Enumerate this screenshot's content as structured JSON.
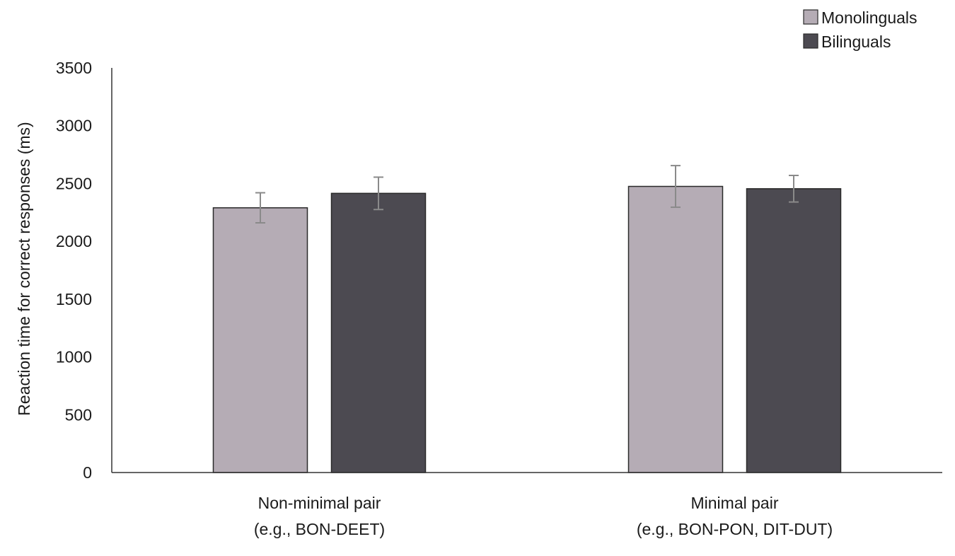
{
  "chart_data": {
    "type": "bar",
    "title": "",
    "xlabel": "",
    "ylabel": "Reaction time for correct responses (ms)",
    "ylim": [
      0,
      3500
    ],
    "yticks": [
      0,
      500,
      1000,
      1500,
      2000,
      2500,
      3000,
      3500
    ],
    "grid": false,
    "legend_position": "top-right",
    "categories": [
      [
        "Non-minimal pair",
        "(e.g., BON-DEET)"
      ],
      [
        "Minimal pair",
        "(e.g., BON-PON, DIT-DUT)"
      ]
    ],
    "series": [
      {
        "name": "Monolinguals",
        "color": "#b5acb5",
        "values": [
          2290,
          2475
        ],
        "error": [
          130,
          180
        ]
      },
      {
        "name": "Bilinguals",
        "color": "#4c4a51",
        "values": [
          2415,
          2455
        ],
        "error": [
          140,
          115
        ]
      }
    ]
  }
}
